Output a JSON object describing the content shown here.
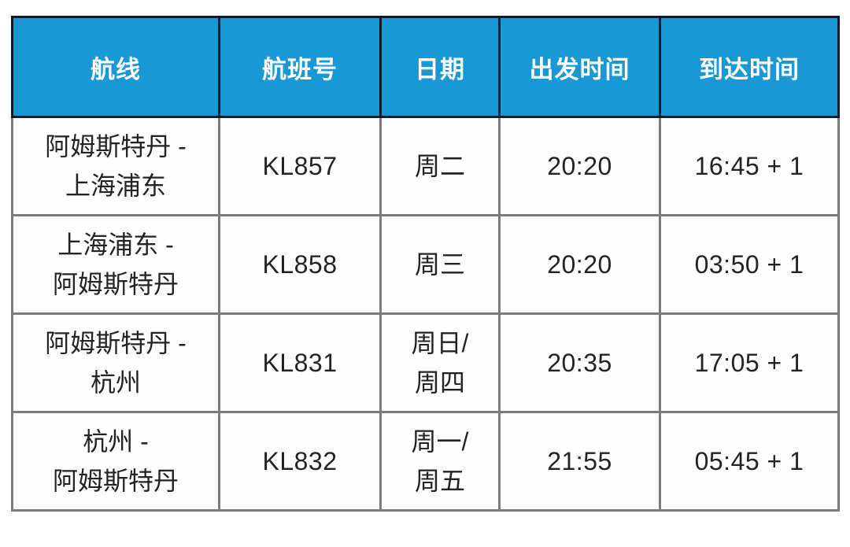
{
  "table": {
    "headers": [
      "航线",
      "航班号",
      "日期",
      "出发时间",
      "到达时间"
    ],
    "rows": [
      {
        "route": [
          "阿姆斯特丹 -",
          "上海浦东"
        ],
        "flight": "KL857",
        "days": [
          "周二"
        ],
        "departure": "20:20",
        "arrival": "16:45 + 1"
      },
      {
        "route": [
          "上海浦东 -",
          "阿姆斯特丹"
        ],
        "flight": "KL858",
        "days": [
          "周三"
        ],
        "departure": "20:20",
        "arrival": "03:50 + 1"
      },
      {
        "route": [
          "阿姆斯特丹 -",
          "杭州"
        ],
        "flight": "KL831",
        "days": [
          "周日/",
          "周四"
        ],
        "departure": "20:35",
        "arrival": "17:05 + 1"
      },
      {
        "route": [
          "杭州 -",
          "阿姆斯特丹"
        ],
        "flight": "KL832",
        "days": [
          "周一/",
          "周五"
        ],
        "departure": "21:55",
        "arrival": "05:45 + 1"
      }
    ]
  },
  "colors": {
    "header_bg": "#1899d6",
    "header_text": "#ffffff",
    "header_border": "#0d1a2b",
    "body_border": "#7c7c7c",
    "body_bg": "#fefefe",
    "body_text": "#232323",
    "page_bg": "#ffffff"
  }
}
